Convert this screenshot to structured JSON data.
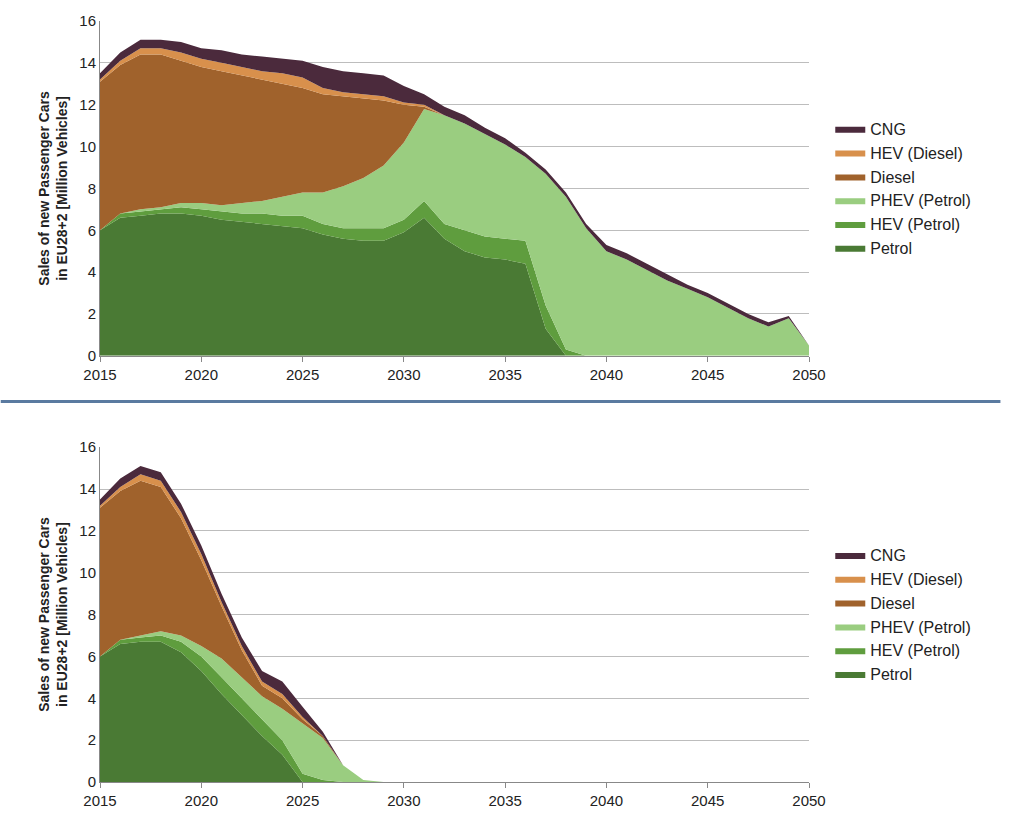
{
  "chart_data": [
    {
      "type": "area",
      "stacked": true,
      "grid": true,
      "legend": "right",
      "y_label": "Sales of new Passenger Cars in EU28+2 [Million Vehicles]",
      "x": [
        2015,
        2016,
        2017,
        2018,
        2019,
        2020,
        2021,
        2022,
        2023,
        2024,
        2025,
        2026,
        2027,
        2028,
        2029,
        2030,
        2031,
        2032,
        2033,
        2034,
        2035,
        2036,
        2037,
        2038,
        2039,
        2040,
        2041,
        2042,
        2043,
        2044,
        2045,
        2046,
        2047,
        2048,
        2049,
        2050
      ],
      "xlim": [
        2015,
        2050
      ],
      "xticks": [
        2015,
        2020,
        2025,
        2030,
        2035,
        2040,
        2045,
        2050
      ],
      "ylim": [
        0,
        16
      ],
      "yticks": [
        0,
        2,
        4,
        6,
        8,
        10,
        12,
        14,
        16
      ],
      "series": [
        {
          "name": "Petrol",
          "color": "#4a7a34",
          "values": [
            6.0,
            6.6,
            6.7,
            6.8,
            6.8,
            6.7,
            6.5,
            6.4,
            6.3,
            6.2,
            6.1,
            5.8,
            5.6,
            5.5,
            5.5,
            5.9,
            6.6,
            5.6,
            5.0,
            4.7,
            4.6,
            4.4,
            1.3,
            0,
            0,
            0,
            0,
            0,
            0,
            0,
            0,
            0,
            0,
            0,
            0,
            0
          ]
        },
        {
          "name": "HEV (Petrol)",
          "color": "#5f9d3e",
          "values": [
            0,
            0.2,
            0.2,
            0.2,
            0.3,
            0.3,
            0.4,
            0.4,
            0.5,
            0.5,
            0.6,
            0.5,
            0.5,
            0.6,
            0.6,
            0.6,
            0.8,
            0.7,
            1.0,
            1.0,
            1.0,
            1.1,
            1.1,
            0.3,
            0,
            0,
            0,
            0,
            0,
            0,
            0,
            0,
            0,
            0,
            0,
            0
          ]
        },
        {
          "name": "PHEV (Petrol)",
          "color": "#9acd80",
          "values": [
            0,
            0,
            0.1,
            0.1,
            0.2,
            0.3,
            0.3,
            0.5,
            0.6,
            0.9,
            1.1,
            1.5,
            2.0,
            2.4,
            3.0,
            3.7,
            4.4,
            5.2,
            5.1,
            4.9,
            4.5,
            4.0,
            6.3,
            7.3,
            6.1,
            5.0,
            4.6,
            4.1,
            3.6,
            3.2,
            2.8,
            2.3,
            1.8,
            1.4,
            1.8,
            0.5
          ]
        },
        {
          "name": "Diesel",
          "color": "#a0622c",
          "values": [
            7.1,
            7.1,
            7.4,
            7.3,
            6.8,
            6.5,
            6.4,
            6.1,
            5.8,
            5.4,
            5.0,
            4.7,
            4.3,
            3.8,
            3.1,
            1.8,
            0.1,
            0,
            0,
            0,
            0,
            0,
            0,
            0,
            0,
            0,
            0,
            0,
            0,
            0,
            0,
            0,
            0,
            0,
            0,
            0
          ]
        },
        {
          "name": "HEV (Diesel)",
          "color": "#d8904c",
          "values": [
            0.1,
            0.2,
            0.3,
            0.3,
            0.4,
            0.4,
            0.4,
            0.4,
            0.4,
            0.5,
            0.5,
            0.3,
            0.2,
            0.2,
            0.2,
            0.1,
            0.1,
            0,
            0,
            0,
            0,
            0,
            0,
            0,
            0,
            0,
            0,
            0,
            0,
            0,
            0,
            0,
            0,
            0,
            0,
            0
          ]
        },
        {
          "name": "CNG",
          "color": "#4b2a3c",
          "values": [
            0.3,
            0.4,
            0.4,
            0.4,
            0.5,
            0.5,
            0.6,
            0.6,
            0.7,
            0.7,
            0.8,
            1.0,
            1.0,
            1.0,
            1.0,
            0.8,
            0.5,
            0.4,
            0.4,
            0.3,
            0.3,
            0.2,
            0.2,
            0.2,
            0.2,
            0.3,
            0.3,
            0.3,
            0.3,
            0.2,
            0.2,
            0.2,
            0.2,
            0.2,
            0.1,
            0
          ]
        }
      ]
    },
    {
      "type": "area",
      "stacked": true,
      "grid": true,
      "legend": "right",
      "y_label": "Sales of new Passenger Cars in EU28+2 [Million Vehicles]",
      "x": [
        2015,
        2016,
        2017,
        2018,
        2019,
        2020,
        2021,
        2022,
        2023,
        2024,
        2025,
        2026,
        2027,
        2028,
        2029,
        2030,
        2031,
        2032,
        2033,
        2034,
        2035,
        2036,
        2037,
        2038,
        2039,
        2040,
        2041,
        2042,
        2043,
        2044,
        2045,
        2046,
        2047,
        2048,
        2049,
        2050
      ],
      "xlim": [
        2015,
        2050
      ],
      "xticks": [
        2015,
        2020,
        2025,
        2030,
        2035,
        2040,
        2045,
        2050
      ],
      "ylim": [
        0,
        16
      ],
      "yticks": [
        0,
        2,
        4,
        6,
        8,
        10,
        12,
        14,
        16
      ],
      "series": [
        {
          "name": "Petrol",
          "color": "#4a7a34",
          "values": [
            6.0,
            6.6,
            6.7,
            6.7,
            6.2,
            5.3,
            4.2,
            3.2,
            2.2,
            1.3,
            0,
            0,
            0,
            0,
            0,
            0,
            0,
            0,
            0,
            0,
            0,
            0,
            0,
            0,
            0,
            0,
            0,
            0,
            0,
            0,
            0,
            0,
            0,
            0,
            0,
            0
          ]
        },
        {
          "name": "HEV (Petrol)",
          "color": "#5f9d3e",
          "values": [
            0,
            0.2,
            0.2,
            0.3,
            0.5,
            0.7,
            0.8,
            0.8,
            0.8,
            0.7,
            0.4,
            0.1,
            0,
            0,
            0,
            0,
            0,
            0,
            0,
            0,
            0,
            0,
            0,
            0,
            0,
            0,
            0,
            0,
            0,
            0,
            0,
            0,
            0,
            0,
            0,
            0
          ]
        },
        {
          "name": "PHEV (Petrol)",
          "color": "#9acd80",
          "values": [
            0,
            0,
            0.1,
            0.2,
            0.3,
            0.5,
            0.9,
            1.0,
            1.1,
            1.5,
            2.4,
            2.0,
            0.8,
            0.1,
            0,
            0,
            0,
            0,
            0,
            0,
            0,
            0,
            0,
            0,
            0,
            0,
            0,
            0,
            0,
            0,
            0,
            0,
            0,
            0,
            0,
            0
          ]
        },
        {
          "name": "Diesel",
          "color": "#a0622c",
          "values": [
            7.1,
            7.1,
            7.4,
            6.9,
            5.6,
            4.1,
            2.5,
            1.3,
            0.5,
            0.5,
            0.2,
            0.1,
            0,
            0,
            0,
            0,
            0,
            0,
            0,
            0,
            0,
            0,
            0,
            0,
            0,
            0,
            0,
            0,
            0,
            0,
            0,
            0,
            0,
            0,
            0,
            0
          ]
        },
        {
          "name": "HEV (Diesel)",
          "color": "#d8904c",
          "values": [
            0.1,
            0.2,
            0.3,
            0.3,
            0.3,
            0.3,
            0.2,
            0.2,
            0.2,
            0.2,
            0.1,
            0,
            0,
            0,
            0,
            0,
            0,
            0,
            0,
            0,
            0,
            0,
            0,
            0,
            0,
            0,
            0,
            0,
            0,
            0,
            0,
            0,
            0,
            0,
            0,
            0
          ]
        },
        {
          "name": "CNG",
          "color": "#4b2a3c",
          "values": [
            0.3,
            0.4,
            0.4,
            0.4,
            0.4,
            0.4,
            0.4,
            0.4,
            0.5,
            0.6,
            0.5,
            0.2,
            0,
            0,
            0,
            0,
            0,
            0,
            0,
            0,
            0,
            0,
            0,
            0,
            0,
            0,
            0,
            0,
            0,
            0,
            0,
            0,
            0,
            0,
            0,
            0
          ]
        }
      ]
    }
  ]
}
